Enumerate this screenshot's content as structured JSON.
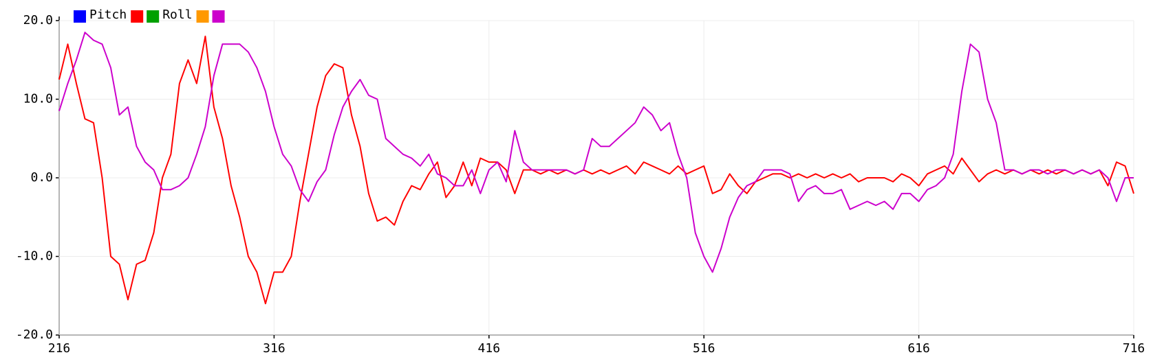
{
  "chart_data": {
    "type": "line",
    "x": [
      216,
      220,
      224,
      228,
      232,
      236,
      240,
      244,
      248,
      252,
      256,
      260,
      264,
      268,
      272,
      276,
      280,
      284,
      288,
      292,
      296,
      300,
      304,
      308,
      312,
      316,
      320,
      324,
      328,
      332,
      336,
      340,
      344,
      348,
      352,
      356,
      360,
      364,
      368,
      372,
      376,
      380,
      384,
      388,
      392,
      396,
      400,
      404,
      408,
      412,
      416,
      420,
      424,
      428,
      432,
      436,
      440,
      444,
      448,
      452,
      456,
      460,
      464,
      468,
      472,
      476,
      480,
      484,
      488,
      492,
      496,
      500,
      504,
      508,
      512,
      516,
      520,
      524,
      528,
      532,
      536,
      540,
      544,
      548,
      552,
      556,
      560,
      564,
      568,
      572,
      576,
      580,
      584,
      588,
      592,
      596,
      600,
      604,
      608,
      612,
      616,
      620,
      624,
      628,
      632,
      636,
      640,
      644,
      648,
      652,
      656,
      660,
      664,
      668,
      672,
      676,
      680,
      684,
      688,
      692,
      696,
      700,
      704,
      708,
      712,
      716
    ],
    "series": [
      {
        "name": "Pitch",
        "color": "#0000ff"
      },
      {
        "color": "#ff0000",
        "values": [
          12.5,
          17,
          12,
          7.5,
          7,
          0,
          -10,
          -11,
          -15.5,
          -11,
          -10.5,
          -7,
          0,
          3,
          12,
          15,
          12,
          18,
          9,
          5,
          -1,
          -5,
          -10,
          -12,
          -16,
          -12,
          -12,
          -10,
          -3,
          3,
          9,
          13,
          14.5,
          14,
          8,
          4,
          -2,
          -5.5,
          -5,
          -6,
          -3,
          -1,
          -1.5,
          0.5,
          2,
          -2.5,
          -1,
          2,
          -1,
          2.5,
          2,
          2,
          1,
          -2,
          1,
          1,
          0.5,
          1,
          0.5,
          1,
          0.5,
          1,
          0.5,
          1,
          0.5,
          1,
          1.5,
          0.5,
          2,
          1.5,
          1,
          0.5,
          1.5,
          0.5,
          1,
          1.5,
          -2,
          -1.5,
          0.5,
          -1,
          -2,
          -0.5,
          0,
          0.5,
          0.5,
          0,
          0.5,
          0,
          0.5,
          0,
          0.5,
          0,
          0.5,
          -0.5,
          0,
          0,
          0,
          -0.5,
          0.5,
          0,
          -1,
          0.5,
          1,
          1.5,
          0.5,
          2.5,
          1,
          -0.5,
          0.5,
          1,
          0.5,
          1,
          0.5,
          1,
          0.5,
          1,
          0.5,
          1,
          0.5,
          1,
          0.5,
          1,
          -1,
          2,
          1.5,
          -2
        ]
      },
      {
        "name": "Roll",
        "color": "#00a000"
      },
      {
        "color": "#ff9900"
      },
      {
        "color": "#cc00cc",
        "values": [
          8.5,
          12,
          15,
          18.5,
          17.5,
          17,
          14,
          8,
          9,
          4,
          2,
          1,
          -1.5,
          -1.5,
          -1,
          0,
          3,
          6.5,
          13,
          17,
          17,
          17,
          16,
          14,
          11,
          6.5,
          3,
          1.5,
          -1.5,
          -3,
          -0.5,
          1,
          5.5,
          9,
          11,
          12.5,
          10.5,
          10,
          5,
          4,
          3,
          2.5,
          1.5,
          3,
          0.5,
          0,
          -1,
          -1,
          1,
          -2,
          1,
          2,
          -0.5,
          6,
          2,
          1,
          1,
          1,
          1,
          1,
          0.5,
          1,
          5,
          4,
          4,
          5,
          6,
          7,
          9,
          8,
          6,
          7,
          3,
          0,
          -7,
          -10,
          -12,
          -9,
          -5,
          -2.5,
          -1,
          -0.5,
          1,
          1,
          1,
          0.5,
          -3,
          -1.5,
          -1,
          -2,
          -2,
          -1.5,
          -4,
          -3.5,
          -3,
          -3.5,
          -3,
          -4,
          -2,
          -2,
          -3,
          -1.5,
          -1,
          0,
          3,
          11,
          17,
          16,
          10,
          7,
          1,
          1,
          0.5,
          1,
          1,
          0.5,
          1,
          1,
          0.5,
          1,
          0.5,
          1,
          0,
          -3,
          0,
          0
        ]
      }
    ],
    "xlim": [
      216,
      716
    ],
    "xticks": [
      216,
      316,
      416,
      516,
      616,
      716
    ],
    "ylim": [
      -20,
      20
    ],
    "yticks": [
      {
        "value": -20,
        "label": "-20.0"
      },
      {
        "value": -10,
        "label": "-10.0"
      },
      {
        "value": 0,
        "label": "0.0"
      },
      {
        "value": 10,
        "label": "10.0"
      },
      {
        "value": 20,
        "label": "20.0"
      }
    ],
    "grid": true
  }
}
